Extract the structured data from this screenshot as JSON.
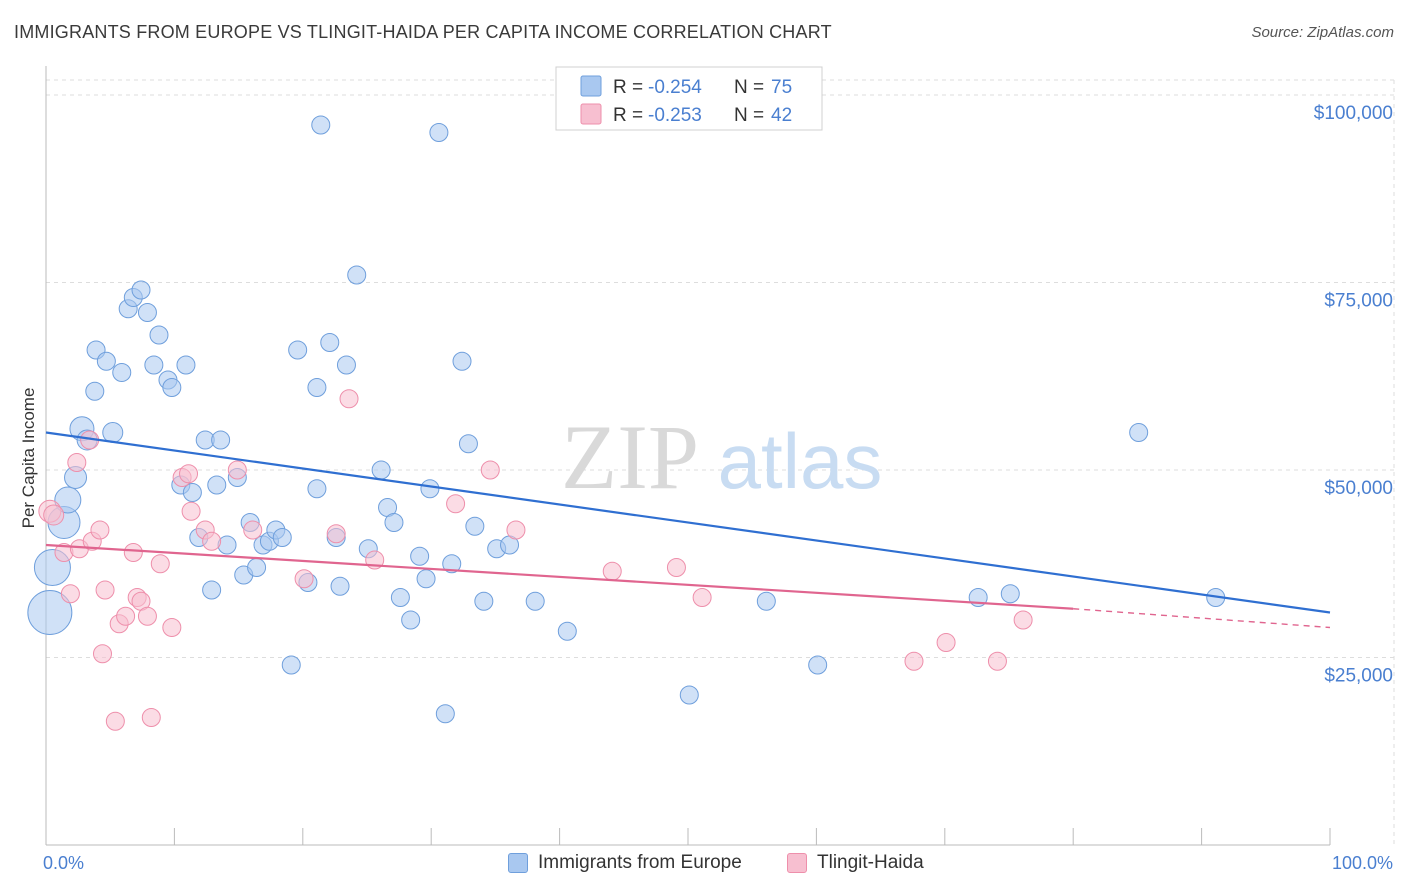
{
  "header": {
    "title": "IMMIGRANTS FROM EUROPE VS TLINGIT-HAIDA PER CAPITA INCOME CORRELATION CHART",
    "source": "Source: ZipAtlas.com"
  },
  "watermark": {
    "part1": "ZIP",
    "part2": "atlas"
  },
  "colors": {
    "blue_fill": "#a9c8f0",
    "blue_stroke": "#6f9fdc",
    "blue_line": "#2f6fd1",
    "pink_fill": "#f7bfd0",
    "pink_stroke": "#ee8fab",
    "pink_line": "#e0658f",
    "tick_label": "#4a7fd0",
    "grid": "#dddddd"
  },
  "chart_data": {
    "type": "scatter",
    "title": "IMMIGRANTS FROM EUROPE VS TLINGIT-HAIDA PER CAPITA INCOME CORRELATION CHART",
    "xlabel": "",
    "ylabel": "Per Capita Income",
    "xlim": [
      0,
      100
    ],
    "ylim": [
      0,
      105000
    ],
    "x_tick_labels": [
      "0.0%",
      "100.0%"
    ],
    "y_ticks": [
      25000,
      50000,
      75000,
      100000
    ],
    "y_tick_labels": [
      "$25,000",
      "$50,000",
      "$75,000",
      "$100,000"
    ],
    "grid": true,
    "legend": {
      "position": "top-center",
      "entries": [
        {
          "r_label": "R = ",
          "r_value": "-0.254",
          "n_label": "N = ",
          "n_value": "75"
        },
        {
          "r_label": "R = ",
          "r_value": "-0.253",
          "n_label": "N = ",
          "n_value": "42"
        }
      ]
    },
    "series": [
      {
        "name": "Immigrants from Europe",
        "color": "blue",
        "trend": {
          "x": [
            0,
            100
          ],
          "y": [
            55000,
            31000
          ],
          "dashed_after": null
        },
        "points": [
          [
            0.3,
            31000,
            22
          ],
          [
            0.5,
            37000,
            18
          ],
          [
            1.4,
            43000,
            16
          ],
          [
            1.7,
            46000,
            13
          ],
          [
            2.3,
            49000,
            11
          ],
          [
            2.8,
            55500,
            12
          ],
          [
            3.2,
            54000,
            10
          ],
          [
            3.8,
            60500,
            9
          ],
          [
            3.9,
            66000,
            9
          ],
          [
            4.7,
            64500,
            9
          ],
          [
            5.2,
            55000,
            10
          ],
          [
            5.9,
            63000,
            9
          ],
          [
            6.4,
            71500,
            9
          ],
          [
            6.8,
            73000,
            9
          ],
          [
            7.4,
            74000,
            9
          ],
          [
            7.9,
            71000,
            9
          ],
          [
            8.4,
            64000,
            9
          ],
          [
            8.8,
            68000,
            9
          ],
          [
            9.5,
            62000,
            9
          ],
          [
            9.8,
            61000,
            9
          ],
          [
            10.5,
            48000,
            9
          ],
          [
            10.9,
            64000,
            9
          ],
          [
            11.4,
            47000,
            9
          ],
          [
            11.9,
            41000,
            9
          ],
          [
            12.4,
            54000,
            9
          ],
          [
            12.9,
            34000,
            9
          ],
          [
            13.3,
            48000,
            9
          ],
          [
            13.6,
            54000,
            9
          ],
          [
            14.1,
            40000,
            9
          ],
          [
            14.9,
            49000,
            9
          ],
          [
            15.4,
            36000,
            9
          ],
          [
            15.9,
            43000,
            9
          ],
          [
            16.4,
            37000,
            9
          ],
          [
            16.9,
            40000,
            9
          ],
          [
            17.4,
            40500,
            9
          ],
          [
            17.9,
            42000,
            9
          ],
          [
            18.4,
            41000,
            9
          ],
          [
            19.1,
            24000,
            9
          ],
          [
            19.6,
            66000,
            9
          ],
          [
            20.4,
            35000,
            9
          ],
          [
            21.1,
            47500,
            9
          ],
          [
            21.1,
            61000,
            9
          ],
          [
            21.4,
            96000,
            9
          ],
          [
            22.1,
            67000,
            9
          ],
          [
            22.6,
            41000,
            9
          ],
          [
            22.9,
            34500,
            9
          ],
          [
            23.4,
            64000,
            9
          ],
          [
            24.2,
            76000,
            9
          ],
          [
            25.1,
            39500,
            9
          ],
          [
            26.1,
            50000,
            9
          ],
          [
            26.6,
            45000,
            9
          ],
          [
            27.1,
            43000,
            9
          ],
          [
            27.6,
            33000,
            9
          ],
          [
            28.4,
            30000,
            9
          ],
          [
            29.1,
            38500,
            9
          ],
          [
            29.6,
            35500,
            9
          ],
          [
            29.9,
            47500,
            9
          ],
          [
            30.6,
            95000,
            9
          ],
          [
            31.1,
            17500,
            9
          ],
          [
            31.6,
            37500,
            9
          ],
          [
            32.4,
            64500,
            9
          ],
          [
            32.9,
            53500,
            9
          ],
          [
            33.4,
            42500,
            9
          ],
          [
            34.1,
            32500,
            9
          ],
          [
            35.1,
            39500,
            9
          ],
          [
            36.1,
            40000,
            9
          ],
          [
            38.1,
            32500,
            9
          ],
          [
            40.6,
            28500,
            9
          ],
          [
            50.1,
            20000,
            9
          ],
          [
            56.1,
            32500,
            9
          ],
          [
            60.1,
            24000,
            9
          ],
          [
            72.6,
            33000,
            9
          ],
          [
            75.1,
            33500,
            9
          ],
          [
            85.1,
            55000,
            9
          ],
          [
            91.1,
            33000,
            9
          ]
        ]
      },
      {
        "name": "Tlingit-Haida",
        "color": "pink",
        "trend": {
          "x": [
            0,
            80,
            100
          ],
          "y": [
            40000,
            31500,
            29000
          ],
          "dashed_after": 80
        },
        "points": [
          [
            0.3,
            44500,
            11
          ],
          [
            0.6,
            44000,
            10
          ],
          [
            1.4,
            39000,
            9
          ],
          [
            1.9,
            33500,
            9
          ],
          [
            2.4,
            51000,
            9
          ],
          [
            2.6,
            39500,
            9
          ],
          [
            3.4,
            54000,
            9
          ],
          [
            3.6,
            40500,
            9
          ],
          [
            4.2,
            42000,
            9
          ],
          [
            4.4,
            25500,
            9
          ],
          [
            4.6,
            34000,
            9
          ],
          [
            5.4,
            16500,
            9
          ],
          [
            5.7,
            29500,
            9
          ],
          [
            6.2,
            30500,
            9
          ],
          [
            6.8,
            39000,
            9
          ],
          [
            7.1,
            33000,
            9
          ],
          [
            7.4,
            32500,
            9
          ],
          [
            7.9,
            30500,
            9
          ],
          [
            8.2,
            17000,
            9
          ],
          [
            8.9,
            37500,
            9
          ],
          [
            9.8,
            29000,
            9
          ],
          [
            10.6,
            49000,
            9
          ],
          [
            11.1,
            49500,
            9
          ],
          [
            11.3,
            44500,
            9
          ],
          [
            12.4,
            42000,
            9
          ],
          [
            12.9,
            40500,
            9
          ],
          [
            14.9,
            50000,
            9
          ],
          [
            16.1,
            42000,
            9
          ],
          [
            20.1,
            35500,
            9
          ],
          [
            22.6,
            41500,
            9
          ],
          [
            23.6,
            59500,
            9
          ],
          [
            25.6,
            38000,
            9
          ],
          [
            31.9,
            45500,
            9
          ],
          [
            34.6,
            50000,
            9
          ],
          [
            36.6,
            42000,
            9
          ],
          [
            44.1,
            36500,
            9
          ],
          [
            49.1,
            37000,
            9
          ],
          [
            51.1,
            33000,
            9
          ],
          [
            67.6,
            24500,
            9
          ],
          [
            70.1,
            27000,
            9
          ],
          [
            74.1,
            24500,
            9
          ],
          [
            76.1,
            30000,
            9
          ]
        ]
      }
    ]
  },
  "bottom_legend": {
    "items": [
      {
        "label": "Immigrants from Europe"
      },
      {
        "label": "Tlingit-Haida"
      }
    ]
  }
}
